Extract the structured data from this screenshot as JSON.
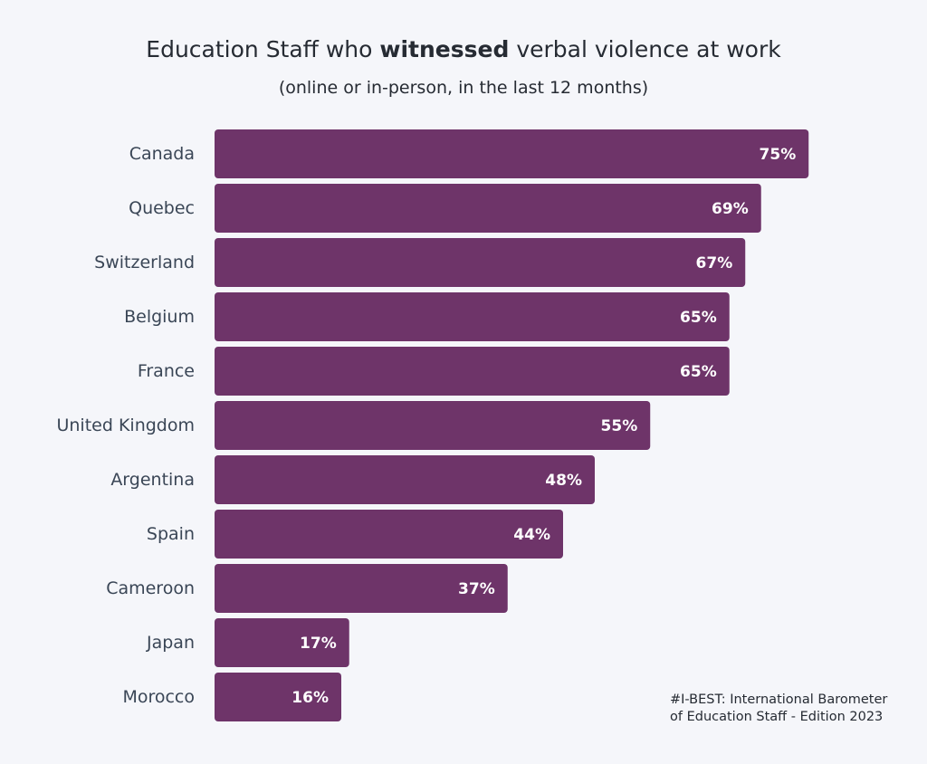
{
  "header": {
    "title_prefix": "Education Staff who ",
    "title_strong": "witnessed",
    "title_suffix": " verbal violence at work",
    "subtitle": "(online or in-person, in the last 12 months)"
  },
  "chart_data": {
    "type": "bar",
    "orientation": "horizontal",
    "title": "Education Staff who witnessed verbal violence at work",
    "subtitle": "(online or in-person, in the last 12 months)",
    "categories": [
      "Canada",
      "Quebec",
      "Switzerland",
      "Belgium",
      "France",
      "United Kingdom",
      "Argentina",
      "Spain",
      "Cameroon",
      "Japan",
      "Morocco"
    ],
    "values": [
      75,
      69,
      67,
      65,
      65,
      55,
      48,
      44,
      37,
      17,
      16
    ],
    "value_labels": [
      "75%",
      "69%",
      "67%",
      "65%",
      "65%",
      "55%",
      "48%",
      "44%",
      "37%",
      "17%",
      "16%"
    ],
    "unit": "%",
    "bar_color": "#6e3469",
    "grid": false,
    "legend": "none"
  },
  "source": {
    "line1": "#I-BEST: International Barometer",
    "line2": "of Education Staff - Edition 2023"
  }
}
